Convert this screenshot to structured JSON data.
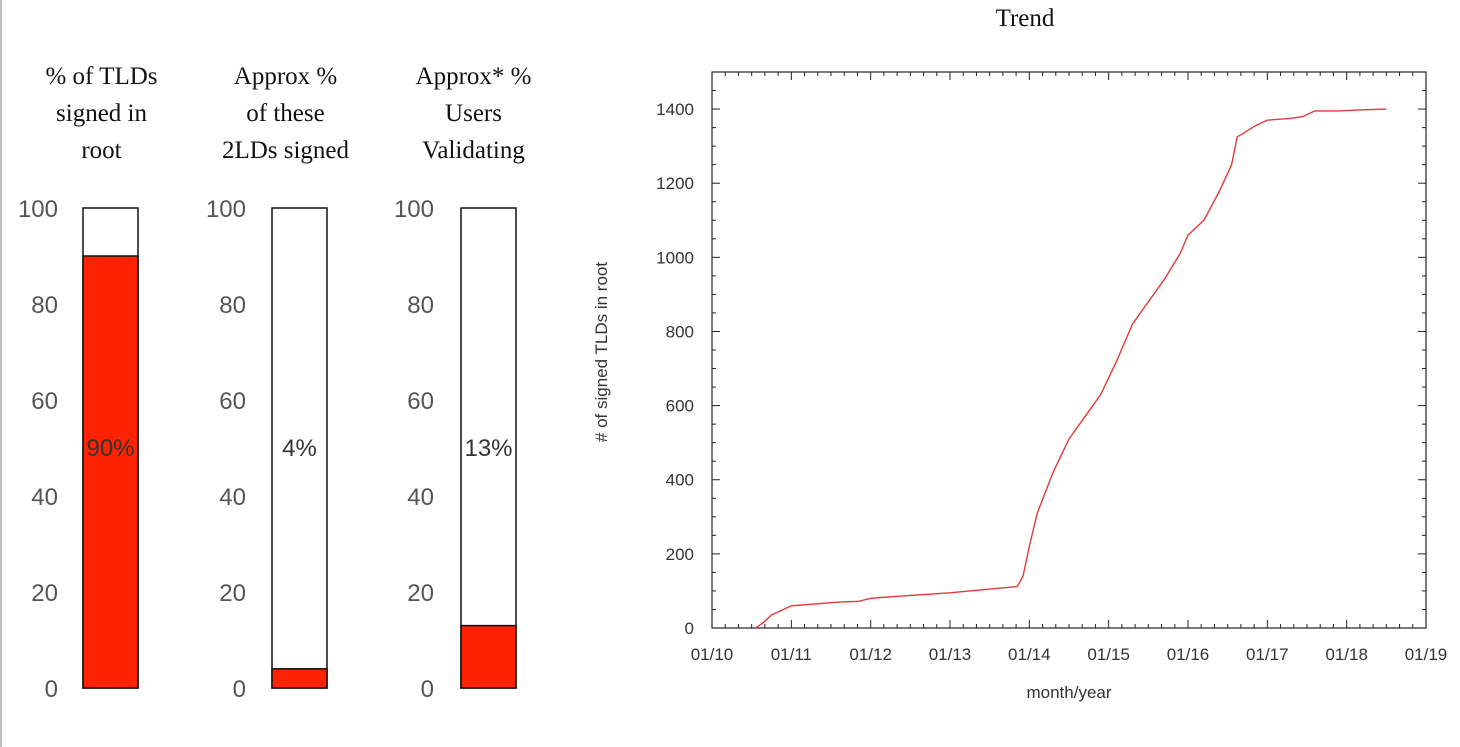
{
  "chart_data": [
    {
      "type": "bar",
      "title": "% of TLDs\nsigned in\nroot",
      "value": 90,
      "value_label": "90%",
      "ylim": [
        0,
        100
      ],
      "yticks": [
        "0",
        "20",
        "40",
        "60",
        "80",
        "100"
      ],
      "fill_color": "#ff2200"
    },
    {
      "type": "bar",
      "title": "Approx %\nof these\n2LDs signed",
      "value": 4,
      "value_label": "4%",
      "ylim": [
        0,
        100
      ],
      "yticks": [
        "0",
        "20",
        "40",
        "60",
        "80",
        "100"
      ],
      "fill_color": "#ff2200"
    },
    {
      "type": "bar",
      "title": "Approx* %\nUsers\nValidating",
      "value": 13,
      "value_label": "13%",
      "ylim": [
        0,
        100
      ],
      "yticks": [
        "0",
        "20",
        "40",
        "60",
        "80",
        "100"
      ],
      "fill_color": "#ff2200"
    },
    {
      "type": "line",
      "title": "Trend",
      "xlabel": "month/year",
      "ylabel": "# of signed TLDs in root",
      "xlim": [
        2010,
        2019
      ],
      "ylim": [
        0,
        1500
      ],
      "xticks": [
        "01/10",
        "01/11",
        "01/12",
        "01/13",
        "01/14",
        "01/15",
        "01/16",
        "01/17",
        "01/18",
        "01/19"
      ],
      "yticks": [
        "0",
        "200",
        "400",
        "600",
        "800",
        "1000",
        "1200",
        "1400"
      ],
      "grid": false,
      "line_color": "#e23a3a",
      "series": [
        {
          "x": [
            2010.55,
            2010.65,
            2010.75,
            2010.9,
            2011.0,
            2011.3,
            2011.6,
            2011.85,
            2012.0,
            2012.5,
            2013.0,
            2013.5,
            2013.85,
            2013.92,
            2014.0,
            2014.1,
            2014.3,
            2014.5,
            2014.7,
            2014.9,
            2015.1,
            2015.3,
            2015.5,
            2015.7,
            2015.9,
            2016.0,
            2016.2,
            2016.4,
            2016.55,
            2016.62,
            2016.7,
            2016.85,
            2017.0,
            2017.3,
            2017.45,
            2017.6,
            2017.9,
            2018.2,
            2018.5
          ],
          "y": [
            0,
            15,
            35,
            50,
            60,
            65,
            70,
            72,
            80,
            88,
            95,
            105,
            112,
            140,
            220,
            310,
            420,
            510,
            570,
            630,
            720,
            820,
            880,
            940,
            1010,
            1060,
            1100,
            1180,
            1250,
            1325,
            1335,
            1355,
            1370,
            1375,
            1380,
            1395,
            1395,
            1398,
            1400
          ]
        }
      ]
    }
  ]
}
